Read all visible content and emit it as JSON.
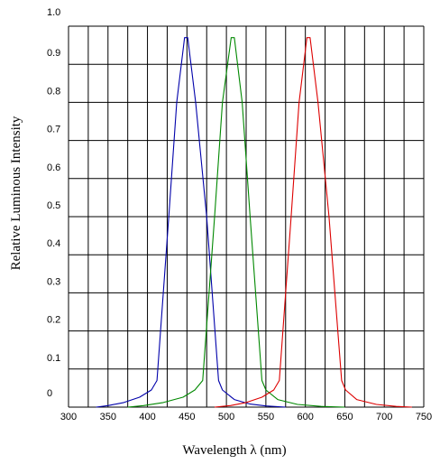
{
  "chart_data": {
    "type": "line",
    "xlabel": "Wavelength λ (nm)",
    "ylabel": "Relative Luminous Intensity",
    "xlim": [
      300,
      750
    ],
    "ylim": [
      0,
      1.0
    ],
    "grid": true,
    "legend": "none",
    "x_ticks": [
      "300",
      "350",
      "400",
      "450",
      "500",
      "550",
      "600",
      "650",
      "700",
      "750"
    ],
    "y_ticks": [
      "0",
      "0.1",
      "0.2",
      "0.3",
      "0.4",
      "0.5",
      "0.6",
      "0.7",
      "0.8",
      "0.9",
      "1.0"
    ],
    "series": [
      {
        "color": "#0000aa",
        "points": [
          [
            335,
            0.0
          ],
          [
            350,
            0.004
          ],
          [
            370,
            0.012
          ],
          [
            390,
            0.026
          ],
          [
            405,
            0.045
          ],
          [
            412,
            0.07
          ],
          [
            427,
            0.5
          ],
          [
            437,
            0.8
          ],
          [
            447,
            0.97
          ],
          [
            451,
            0.97
          ],
          [
            461,
            0.8
          ],
          [
            475,
            0.5
          ],
          [
            490,
            0.07
          ],
          [
            495,
            0.045
          ],
          [
            510,
            0.02
          ],
          [
            530,
            0.008
          ],
          [
            550,
            0.003
          ],
          [
            575,
            0.0
          ]
        ]
      },
      {
        "color": "#008800",
        "points": [
          [
            375,
            0.0
          ],
          [
            395,
            0.004
          ],
          [
            420,
            0.012
          ],
          [
            445,
            0.026
          ],
          [
            460,
            0.045
          ],
          [
            470,
            0.07
          ],
          [
            485,
            0.5
          ],
          [
            495,
            0.8
          ],
          [
            506,
            0.97
          ],
          [
            510,
            0.97
          ],
          [
            520,
            0.8
          ],
          [
            530,
            0.5
          ],
          [
            545,
            0.07
          ],
          [
            550,
            0.045
          ],
          [
            565,
            0.02
          ],
          [
            590,
            0.007
          ],
          [
            620,
            0.002
          ],
          [
            650,
            0.0
          ]
        ]
      },
      {
        "color": "#dd0000",
        "points": [
          [
            485,
            0.0
          ],
          [
            505,
            0.004
          ],
          [
            525,
            0.012
          ],
          [
            545,
            0.026
          ],
          [
            560,
            0.045
          ],
          [
            567,
            0.07
          ],
          [
            582,
            0.5
          ],
          [
            592,
            0.8
          ],
          [
            602,
            0.97
          ],
          [
            606,
            0.97
          ],
          [
            616,
            0.8
          ],
          [
            630,
            0.5
          ],
          [
            646,
            0.07
          ],
          [
            651,
            0.045
          ],
          [
            665,
            0.02
          ],
          [
            690,
            0.007
          ],
          [
            715,
            0.002
          ],
          [
            735,
            0.0
          ]
        ]
      }
    ]
  }
}
